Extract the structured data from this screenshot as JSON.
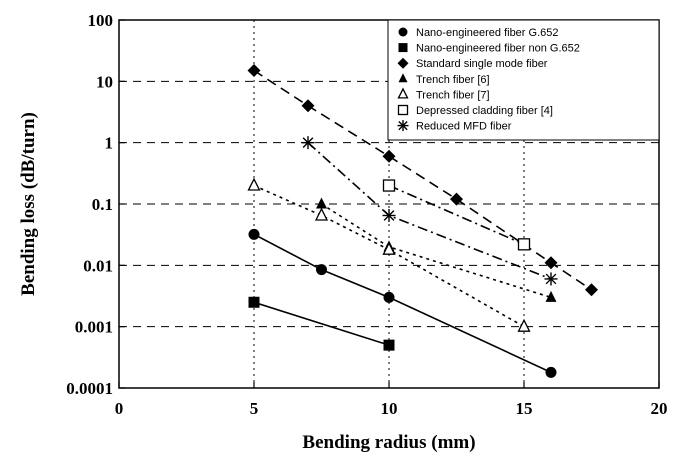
{
  "chart_data": {
    "type": "scatter",
    "xlabel": "Bending radius (mm)",
    "ylabel": "Bending loss (dB/turn)",
    "xlim": [
      0,
      20
    ],
    "ylim": [
      0.0001,
      100
    ],
    "y_scale": "log",
    "x_ticks": [
      "0",
      "5",
      "10",
      "15",
      "20"
    ],
    "y_ticks": [
      "0.0001",
      "0.001",
      "0.01",
      "0.1",
      "1",
      "10",
      "100"
    ],
    "grid": "dashed",
    "legend_position": "top-right",
    "series": [
      {
        "name": "Nano-engineered fiber G.652",
        "marker": "circle",
        "line": "solid",
        "x": [
          5,
          7.5,
          10,
          16
        ],
        "y": [
          0.032,
          0.0085,
          0.003,
          0.00018
        ]
      },
      {
        "name": "Nano-engineered fiber non G.652",
        "marker": "square",
        "line": "solid",
        "x": [
          5,
          10
        ],
        "y": [
          0.0025,
          0.0005
        ]
      },
      {
        "name": "Standard single mode fiber",
        "marker": "diamond",
        "line": "dashed",
        "x": [
          5,
          7,
          10,
          12.5,
          16,
          17.5
        ],
        "y": [
          15,
          4,
          0.6,
          0.12,
          0.011,
          0.004
        ]
      },
      {
        "name": "Trench fiber [6]",
        "marker": "triangle",
        "line": "dotted",
        "x": [
          7.5,
          10,
          16
        ],
        "y": [
          0.1,
          0.02,
          0.003
        ]
      },
      {
        "name": "Trench fiber [7]",
        "marker": "triangle-open",
        "line": "dotted",
        "x": [
          5,
          7.5,
          10,
          15
        ],
        "y": [
          0.2,
          0.065,
          0.018,
          0.001
        ]
      },
      {
        "name": "Depressed cladding fiber [4]",
        "marker": "square-open",
        "line": "dashdot",
        "x": [
          10,
          15
        ],
        "y": [
          0.2,
          0.022
        ]
      },
      {
        "name": "Reduced MFD fiber",
        "marker": "star",
        "line": "dashdot",
        "x": [
          7,
          10,
          16
        ],
        "y": [
          1,
          0.065,
          0.006
        ]
      }
    ]
  }
}
